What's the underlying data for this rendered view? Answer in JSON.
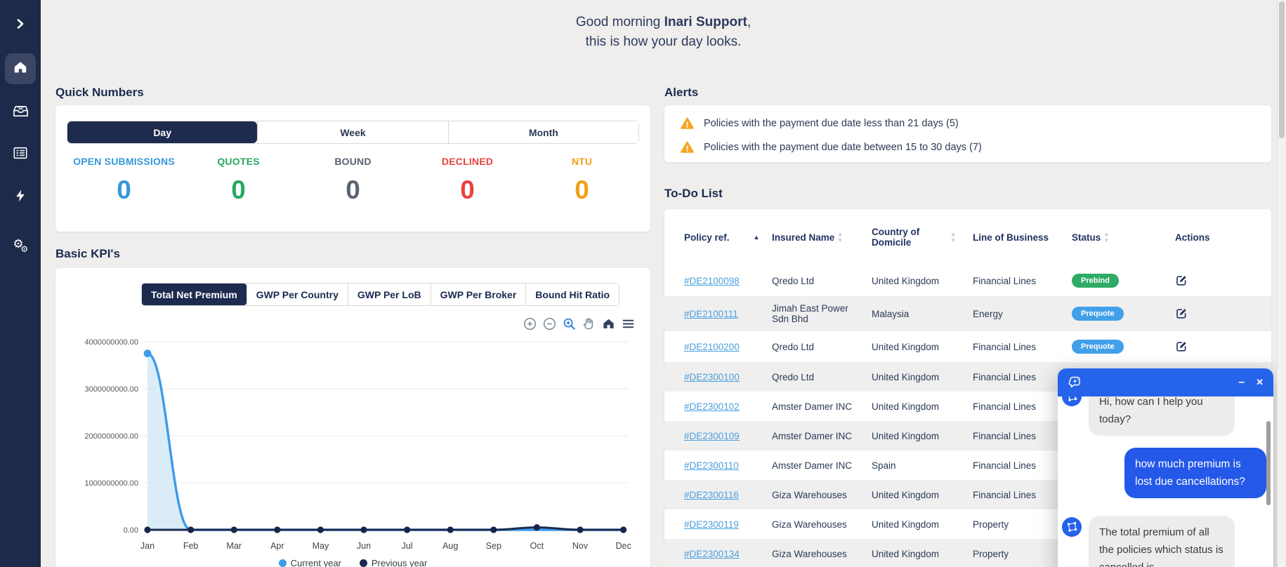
{
  "greeting": {
    "line1_prefix": "Good morning ",
    "user_name": "Inari Support",
    "line1_suffix": ",",
    "line2": "this is how your day looks."
  },
  "sidebar": {
    "bg_color": "#1e2a4a",
    "items": [
      {
        "icon": "chevron-right-icon",
        "active": false
      },
      {
        "icon": "home-icon",
        "active": true
      },
      {
        "icon": "inbox-icon",
        "active": false
      },
      {
        "icon": "list-icon",
        "active": false
      },
      {
        "icon": "bolt-icon",
        "active": false
      },
      {
        "icon": "gears-icon",
        "active": false
      }
    ]
  },
  "quick_numbers": {
    "title": "Quick Numbers",
    "tabs": [
      {
        "label": "Day",
        "active": true
      },
      {
        "label": "Week",
        "active": false
      },
      {
        "label": "Month",
        "active": false
      }
    ],
    "stats": [
      {
        "label": "OPEN SUBMISSIONS",
        "value": "0",
        "color": "#3598db"
      },
      {
        "label": "QUOTES",
        "value": "0",
        "color": "#27a960"
      },
      {
        "label": "BOUND",
        "value": "0",
        "color": "#5b6372"
      },
      {
        "label": "DECLINED",
        "value": "0",
        "color": "#e84340"
      },
      {
        "label": "NTU",
        "value": "0",
        "color": "#f2a016"
      }
    ]
  },
  "basic_kpis": {
    "title": "Basic KPI's",
    "tabs": [
      {
        "label": "Total Net Premium",
        "active": true
      },
      {
        "label": "GWP Per Country",
        "active": false
      },
      {
        "label": "GWP Per LoB",
        "active": false
      },
      {
        "label": "GWP Per Broker",
        "active": false
      },
      {
        "label": "Bound Hit Ratio",
        "active": false
      }
    ],
    "toolbar_icons": [
      "zoom-in-icon",
      "zoom-out-icon",
      "selection-zoom-icon",
      "pan-hand-icon",
      "reset-home-icon",
      "menu-icon"
    ]
  },
  "chart_data": {
    "type": "area",
    "x": [
      "Jan",
      "Feb",
      "Mar",
      "Apr",
      "May",
      "Jun",
      "Jul",
      "Aug",
      "Sep",
      "Oct",
      "Nov",
      "Dec"
    ],
    "series": [
      {
        "name": "Current year",
        "color": "#3d9be9",
        "fill": "#cfe5f7",
        "values": [
          3750000000,
          0,
          0,
          0,
          0,
          0,
          0,
          0,
          0,
          0,
          0,
          0
        ]
      },
      {
        "name": "Previous year",
        "color": "#1a2b50",
        "fill": "none",
        "values": [
          0,
          0,
          0,
          0,
          0,
          0,
          0,
          0,
          0,
          50000000,
          0,
          0
        ]
      }
    ],
    "ylim": [
      0,
      4000000000
    ],
    "y_ticks": [
      "4000000000.00",
      "3000000000.00",
      "2000000000.00",
      "1000000000.00",
      "0.00"
    ],
    "grid": true,
    "legend_position": "bottom"
  },
  "alerts": {
    "title": "Alerts",
    "items": [
      {
        "icon": "warning-icon",
        "text": "Policies with the payment due date less than 21 days (5)"
      },
      {
        "icon": "warning-icon",
        "text": "Policies with the payment due date between 15 to 30 days (7)"
      }
    ]
  },
  "todo": {
    "title": "To-Do List",
    "columns": [
      {
        "label": "Policy ref.",
        "sort": "asc"
      },
      {
        "label": "Insured Name",
        "sort": "faint"
      },
      {
        "label": "Country of Domicile",
        "sort": "faint"
      },
      {
        "label": "Line of Business",
        "sort": null
      },
      {
        "label": "Status",
        "sort": "faint"
      },
      {
        "label": "Actions",
        "sort": null
      }
    ],
    "rows": [
      {
        "ref": "#DE2100098",
        "name": "Qredo Ltd",
        "country": "United Kingdom",
        "lob": "Financial Lines",
        "status_label": "Prebind",
        "status_color": "#2eab66"
      },
      {
        "ref": "#DE2100111",
        "name": "Jimah East Power Sdn Bhd",
        "country": "Malaysia",
        "lob": "Energy",
        "status_label": "Prequote",
        "status_color": "#41a0e8"
      },
      {
        "ref": "#DE2100200",
        "name": "Qredo Ltd",
        "country": "United Kingdom",
        "lob": "Financial Lines",
        "status_label": "Prequote",
        "status_color": "#41a0e8"
      },
      {
        "ref": "#DE2300100",
        "name": "Qredo Ltd",
        "country": "United Kingdom",
        "lob": "Financial Lines",
        "status_label": null,
        "status_color": null
      },
      {
        "ref": "#DE2300102",
        "name": "Amster Damer INC",
        "country": "United Kingdom",
        "lob": "Financial Lines",
        "status_label": null,
        "status_color": null
      },
      {
        "ref": "#DE2300109",
        "name": "Amster Damer INC",
        "country": "United Kingdom",
        "lob": "Financial Lines",
        "status_label": null,
        "status_color": null
      },
      {
        "ref": "#DE2300110",
        "name": "Amster Damer INC",
        "country": "Spain",
        "lob": "Financial Lines",
        "status_label": null,
        "status_color": null
      },
      {
        "ref": "#DE2300116",
        "name": "Giza Warehouses",
        "country": "United Kingdom",
        "lob": "Financial Lines",
        "status_label": null,
        "status_color": null
      },
      {
        "ref": "#DE2300119",
        "name": "Giza Warehouses",
        "country": "United Kingdom",
        "lob": "Property",
        "status_label": null,
        "status_color": null
      },
      {
        "ref": "#DE2300134",
        "name": "Giza Warehouses",
        "country": "United Kingdom",
        "lob": "Property",
        "status_label": null,
        "status_color": null
      }
    ]
  },
  "chat": {
    "header_icon": "chat-sparkle-icon",
    "minimize_label": "–",
    "close_label": "✕",
    "messages": [
      {
        "from": "bot",
        "text": "Hi, how can I help you today?"
      },
      {
        "from": "user",
        "text": "how much premium is lost due cancellations?"
      },
      {
        "from": "bot",
        "text": "The total premium of all the policies which status is cancelled is"
      }
    ]
  }
}
